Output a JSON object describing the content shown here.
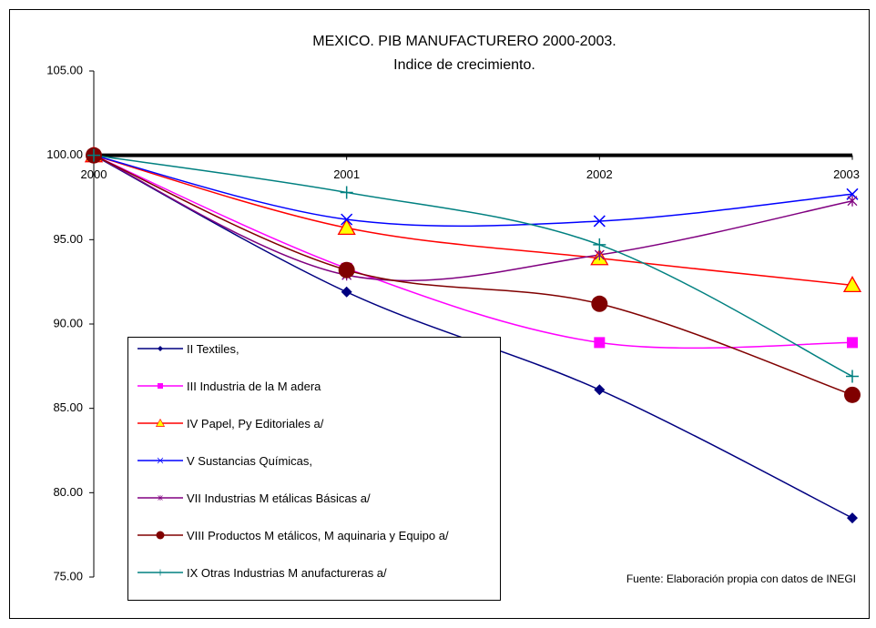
{
  "chart_data": {
    "type": "line",
    "title": "MEXICO. PIB MANUFACTURERO 2000-2003.",
    "subtitle": "Indice de crecimiento.",
    "note": "Fuente: Elaboración propia con datos de INEGI",
    "categories": [
      "2000",
      "2001",
      "2002",
      "2003"
    ],
    "ylim": [
      75,
      105
    ],
    "yticks": [
      {
        "value": 75,
        "label": "75.00"
      },
      {
        "value": 80,
        "label": "80.00"
      },
      {
        "value": 85,
        "label": "85.00"
      },
      {
        "value": 90,
        "label": "90.00"
      },
      {
        "value": 95,
        "label": "95.00"
      },
      {
        "value": 100,
        "label": "100.00"
      },
      {
        "value": 105,
        "label": "105.00"
      }
    ],
    "x_axis_at": 100,
    "series": [
      {
        "name": "II Textiles,",
        "color": "#000080",
        "marker": "diamond",
        "values": [
          100,
          91.9,
          86.1,
          78.5
        ]
      },
      {
        "name": "III Industria de la M adera",
        "color": "#ff00ff",
        "marker": "square",
        "values": [
          100,
          93.3,
          88.9,
          88.9
        ]
      },
      {
        "name": "IV Papel, Py Editoriales a/",
        "color": "#ff0000",
        "marker": "triangle",
        "marker_fill": "#ffff00",
        "values": [
          100,
          95.7,
          93.9,
          92.3
        ]
      },
      {
        "name": "V Sustancias Químicas,",
        "color": "#0000ff",
        "marker": "x",
        "values": [
          100,
          96.2,
          96.1,
          97.7
        ]
      },
      {
        "name": "VII Industrias M etálicas Básicas a/",
        "color": "#800080",
        "marker": "asterisk",
        "values": [
          100,
          92.9,
          94.1,
          97.3
        ]
      },
      {
        "name": "VIII Productos M etálicos, M aquinaria y Equipo a/",
        "color": "#800000",
        "marker": "circle",
        "values": [
          100,
          93.2,
          91.2,
          85.8
        ]
      },
      {
        "name": "IX Otras Industrias M anufactureras a/",
        "color": "#008080",
        "marker": "plus",
        "values": [
          100,
          97.8,
          94.7,
          86.9
        ]
      }
    ]
  }
}
